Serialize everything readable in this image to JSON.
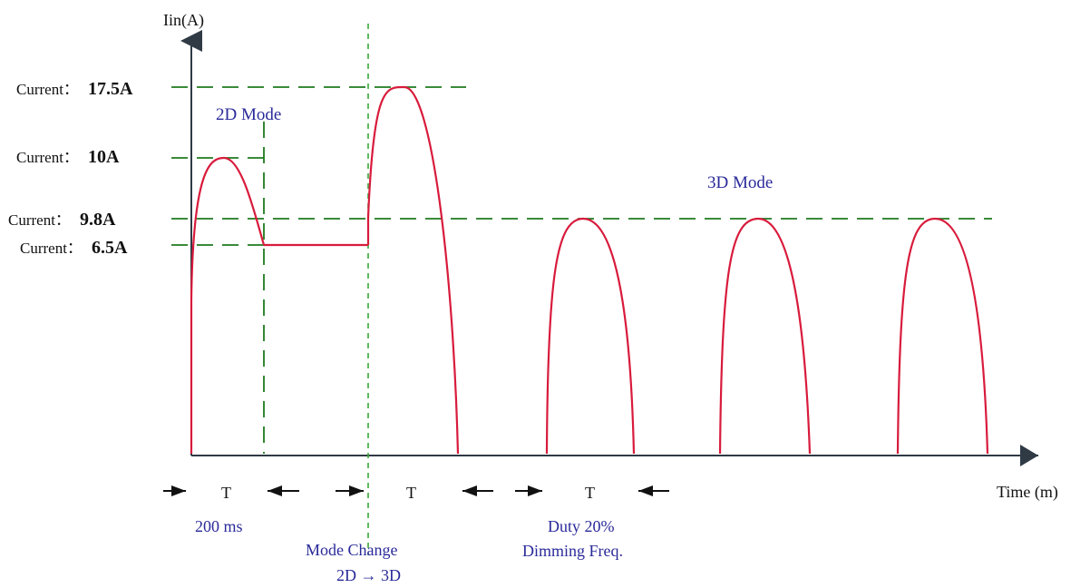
{
  "diagram": {
    "y_axis_label": "Iin(A)",
    "x_axis_label": "Time (m)",
    "current_labels": [
      {
        "prefix": "Current：",
        "value": "17.5A"
      },
      {
        "prefix": "Current：",
        "value": "10A"
      },
      {
        "prefix": "Current：",
        "value": "9.8A"
      },
      {
        "prefix": "Current：",
        "value": "6.5A"
      }
    ],
    "mode_labels": {
      "mode_2d": "2D Mode",
      "mode_3d": "3D Mode"
    },
    "period_markers": [
      "T",
      "T",
      "T"
    ],
    "annotations": {
      "startup_time": "200 ms",
      "mode_change_line1": "Mode Change",
      "mode_change_line2": "2D → 3D",
      "duty": "Duty 20%",
      "dimming": "Dimming Freq."
    },
    "colors": {
      "waveform": "#d81b3c",
      "guide_lines": "#1f7a1f",
      "mode_line": "#39a839",
      "annotation_text": "#2a2a9a"
    }
  }
}
